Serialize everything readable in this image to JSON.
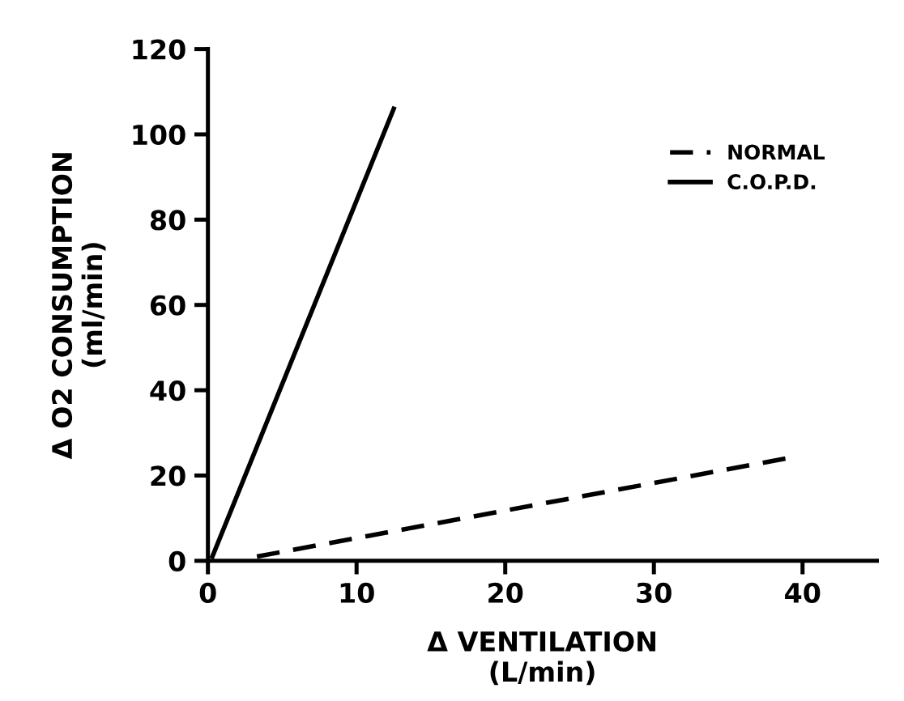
{
  "chart_data": {
    "type": "line",
    "xlabel": "Δ VENTILATION\n(L/min)",
    "ylabel": "Δ O2 CONSUMPTION\n(ml/min)",
    "xlim": [
      0,
      45
    ],
    "ylim": [
      0,
      120
    ],
    "xticks": [
      0,
      10,
      20,
      30,
      40
    ],
    "yticks": [
      0,
      20,
      40,
      60,
      80,
      100,
      120
    ],
    "legend": "top right",
    "grid": false,
    "series": [
      {
        "name": "NORMAL",
        "color": "#000000",
        "line_style": "dashed",
        "x": [
          3.3,
          38.9
        ],
        "values": [
          1,
          24
        ]
      },
      {
        "name": "C.O.P.D.",
        "color": "#000000",
        "line_style": "solid",
        "x": [
          0.3,
          12.5
        ],
        "values": [
          1,
          106
        ]
      }
    ]
  }
}
